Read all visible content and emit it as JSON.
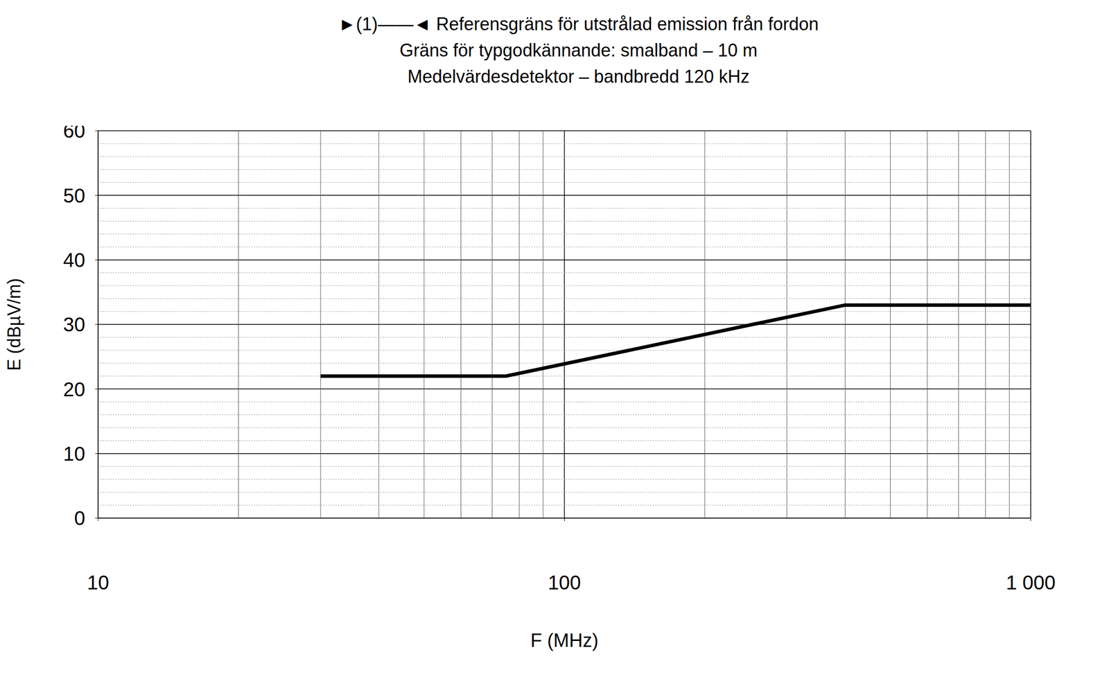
{
  "chart_data": {
    "type": "line",
    "title": "►(1)——◄ Referensgräns för utstrålad emission från fordon",
    "subtitle": [
      "Gräns för typgodkännande: smalband – 10 m",
      "Medelvärdesdetektor – bandbredd 120 kHz"
    ],
    "x_label": "F (MHz)",
    "y_label": "E (dBµV/m)",
    "x": [
      30,
      75,
      400,
      1000
    ],
    "values": [
      22,
      22,
      33,
      33
    ],
    "color": "#000000",
    "xlim": [
      10,
      1000
    ],
    "xticks": [
      10,
      100,
      {
        "value": 1000,
        "label": "1 000"
      }
    ],
    "ylim": [
      0,
      60
    ],
    "yticks": [
      0,
      10,
      20,
      30,
      40,
      50,
      60
    ],
    "log": "x",
    "grid": true
  }
}
